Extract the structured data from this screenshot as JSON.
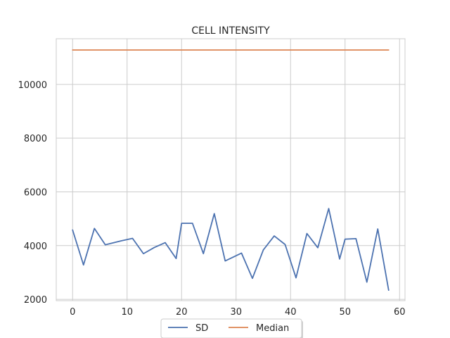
{
  "chart_data": {
    "type": "line",
    "title": "CELL INTENSITY",
    "xlabel": "",
    "ylabel": "",
    "xlim": [
      -3,
      61
    ],
    "ylim": [
      1950,
      11700
    ],
    "x_ticks": [
      0,
      10,
      20,
      30,
      40,
      50,
      60
    ],
    "y_ticks": [
      2000,
      4000,
      6000,
      8000,
      10000
    ],
    "grid": true,
    "legend_position": "bottom-center",
    "series": [
      {
        "name": "SD",
        "color": "#4c72b0",
        "x": [
          0,
          2,
          4,
          6,
          9,
          11,
          13,
          15,
          17,
          19,
          20,
          22,
          24,
          26,
          28,
          31,
          33,
          35,
          37,
          39,
          41,
          43,
          45,
          47,
          49,
          50,
          52,
          54,
          56,
          58
        ],
        "values": [
          4580,
          3280,
          4640,
          4030,
          4180,
          4270,
          3700,
          3930,
          4110,
          3520,
          4830,
          4830,
          3700,
          5190,
          3430,
          3720,
          2780,
          3840,
          4360,
          4040,
          2800,
          4450,
          3920,
          5380,
          3500,
          4240,
          4260,
          2640,
          4620,
          2340
        ]
      },
      {
        "name": "Median",
        "color": "#dd8452",
        "x": [
          0,
          58
        ],
        "values": [
          11280,
          11280
        ]
      }
    ]
  }
}
